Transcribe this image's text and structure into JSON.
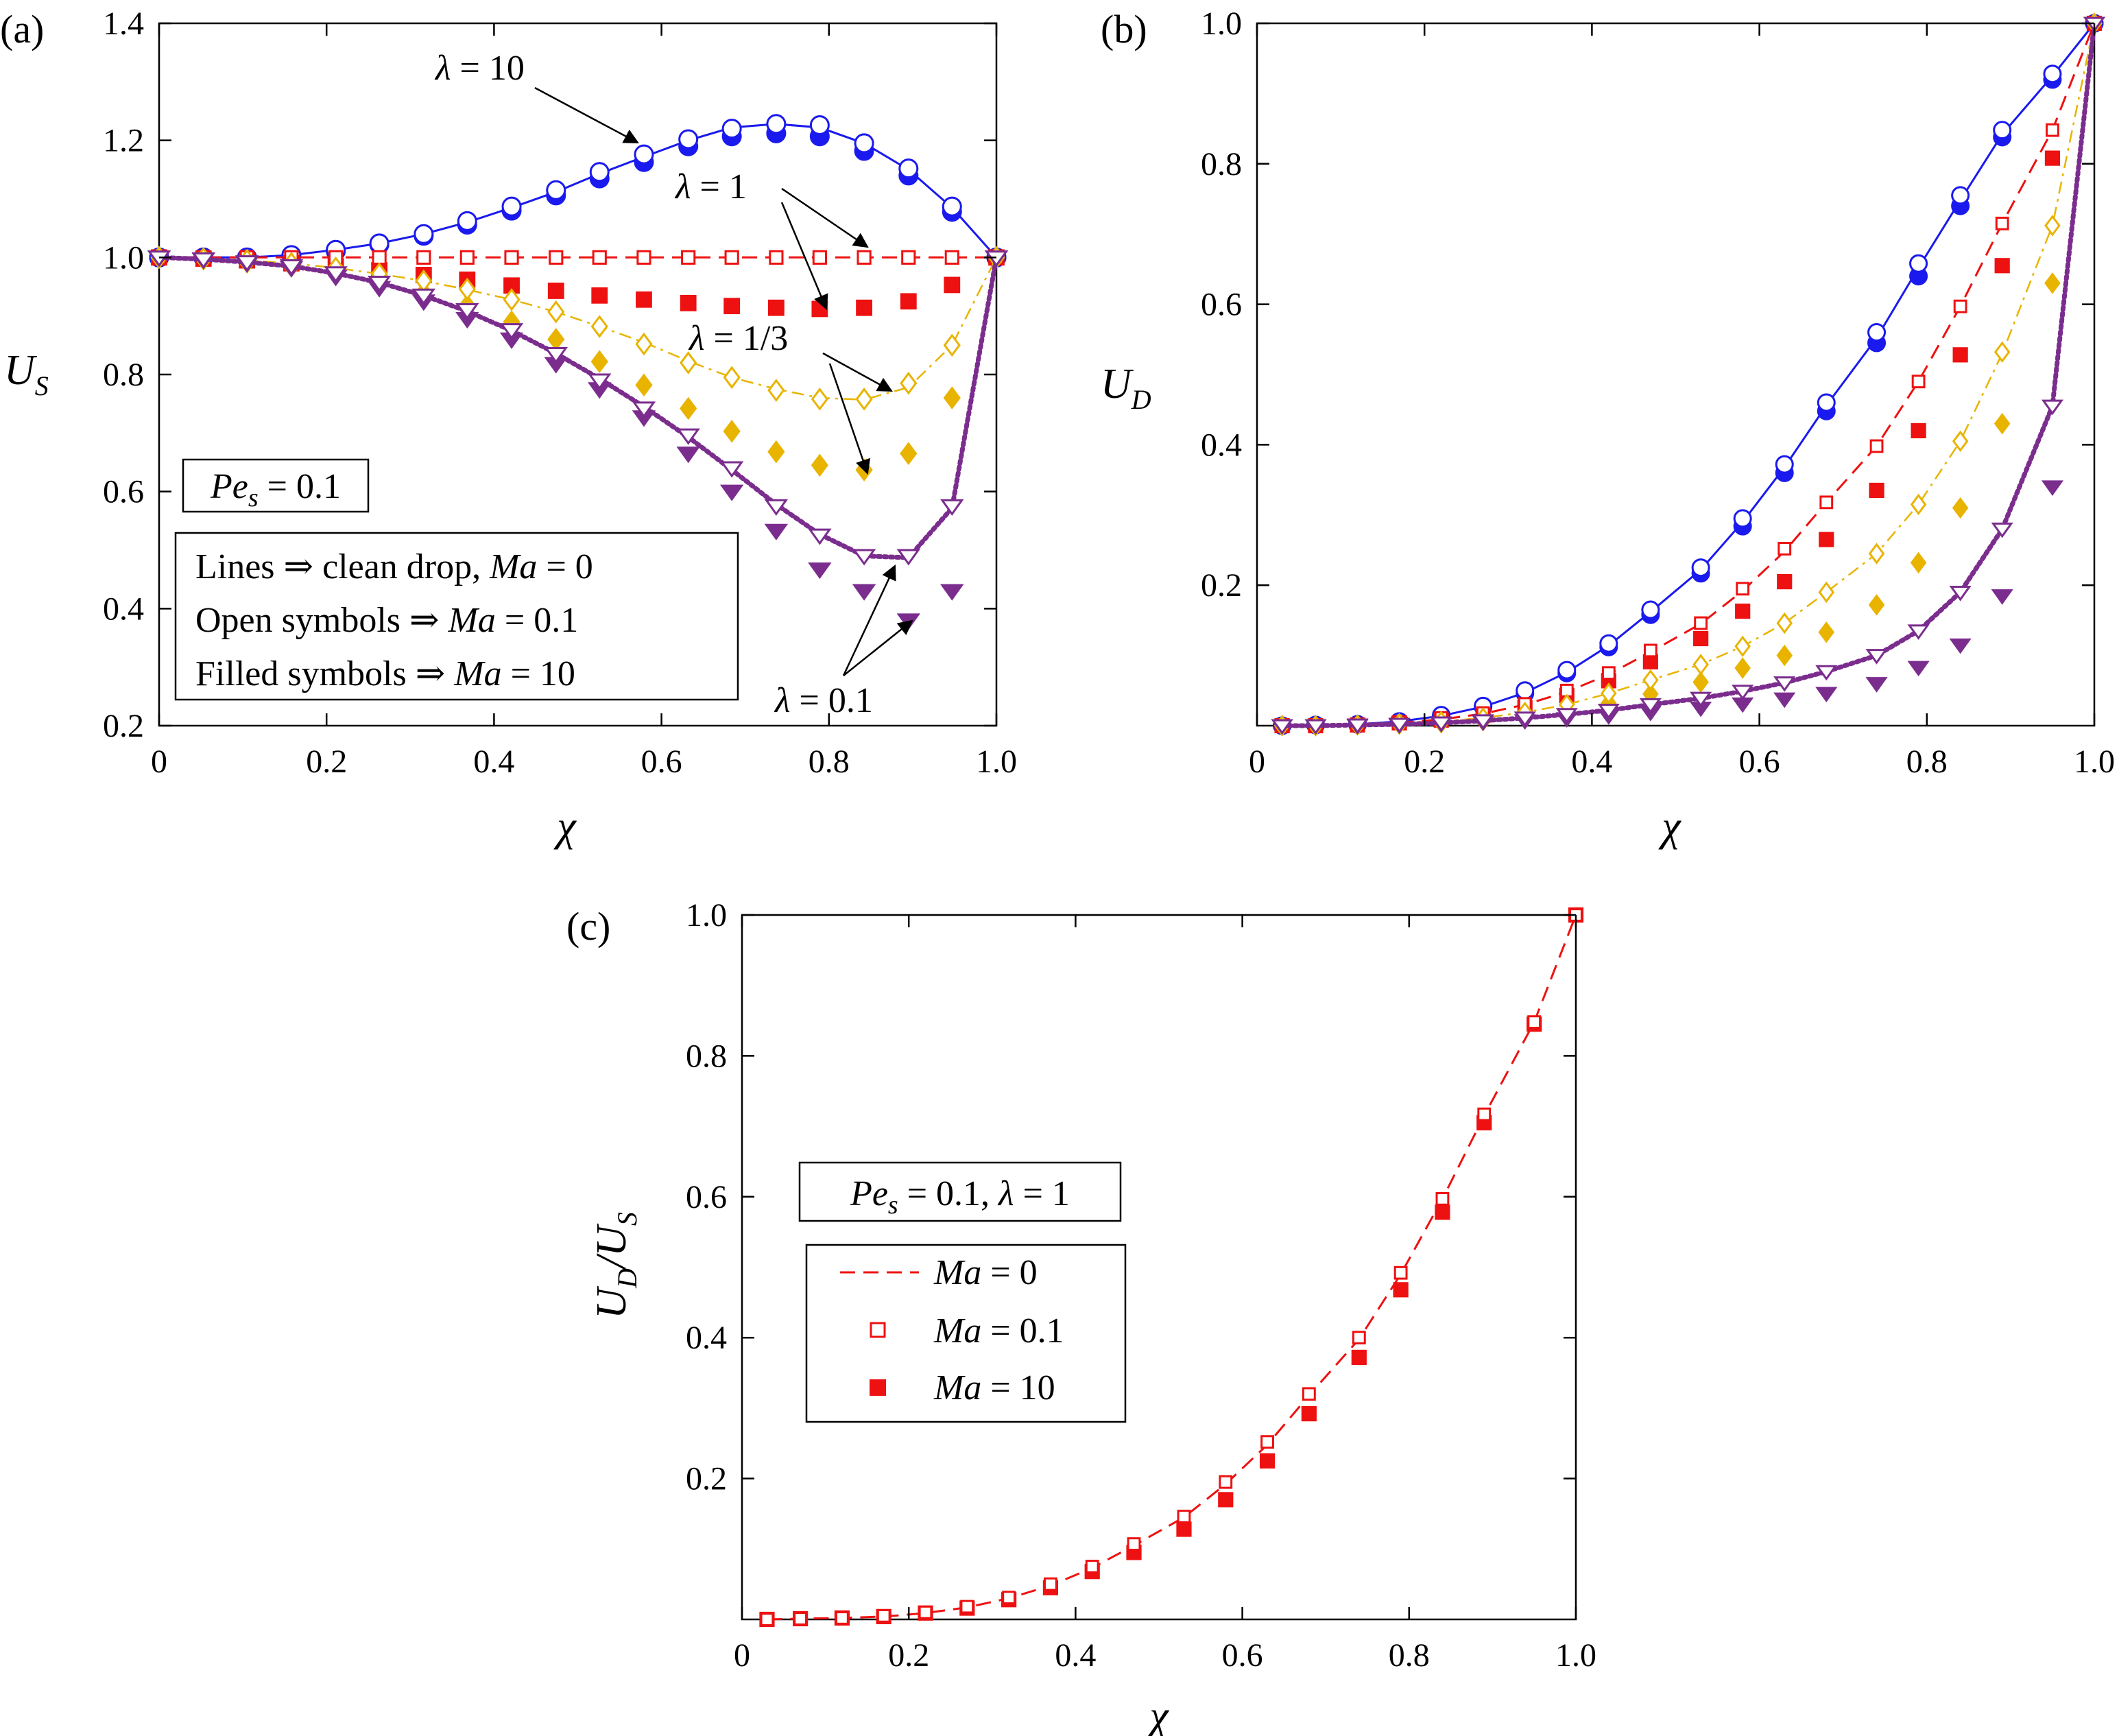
{
  "chart_data": [
    {
      "panel": "(a)",
      "type": "line",
      "xlabel": "χ",
      "ylabel": "U_S",
      "xlim": [
        0,
        1.0
      ],
      "ylim": [
        0.2,
        1.4
      ],
      "xticks": [
        "0",
        "0.2",
        "0.4",
        "0.6",
        "0.8",
        "1.0"
      ],
      "yticks": [
        "0.2",
        "0.4",
        "0.6",
        "0.8",
        "1.0",
        "1.2",
        "1.4"
      ],
      "info_box": "Pe_s = 0.1",
      "legend_notes": [
        "Lines ⇒ clean drop, Ma = 0",
        "Open symbols ⇒ Ma = 0.1",
        "Filled symbols ⇒ Ma = 10"
      ],
      "annotations": [
        "λ = 10",
        "λ = 1",
        "λ = 1/3",
        "λ = 0.1"
      ],
      "series": [
        {
          "name": "λ = 10",
          "color": "#1a1aee",
          "style": "solid",
          "marker": "circle",
          "x": [
            0,
            0.053,
            0.105,
            0.158,
            0.211,
            0.263,
            0.316,
            0.368,
            0.421,
            0.474,
            0.526,
            0.579,
            0.632,
            0.684,
            0.737,
            0.789,
            0.842,
            0.895,
            0.947,
            1.0
          ],
          "clean": [
            1.0,
            1.0,
            1.0,
            1.004,
            1.013,
            1.024,
            1.04,
            1.06,
            1.085,
            1.112,
            1.143,
            1.172,
            1.2,
            1.222,
            1.228,
            1.222,
            1.195,
            1.15,
            1.085,
            1.0
          ],
          "open": [
            1.0,
            1.0,
            1.0,
            1.004,
            1.013,
            1.024,
            1.04,
            1.062,
            1.087,
            1.115,
            1.146,
            1.176,
            1.202,
            1.22,
            1.228,
            1.226,
            1.195,
            1.152,
            1.087,
            1.0
          ],
          "filled": [
            1.0,
            1.0,
            1.0,
            1.003,
            1.011,
            1.022,
            1.037,
            1.056,
            1.08,
            1.106,
            1.135,
            1.163,
            1.19,
            1.207,
            1.212,
            1.207,
            1.182,
            1.14,
            1.078,
            1.0
          ]
        },
        {
          "name": "λ = 1",
          "color": "#ee1111",
          "style": "dashed",
          "marker": "square",
          "x": [
            0,
            0.053,
            0.105,
            0.158,
            0.211,
            0.263,
            0.316,
            0.368,
            0.421,
            0.474,
            0.526,
            0.579,
            0.632,
            0.684,
            0.737,
            0.789,
            0.842,
            0.895,
            0.947,
            1.0
          ],
          "clean": [
            1.0,
            1.0,
            1.0,
            1.0,
            1.0,
            1.0,
            1.0,
            1.0,
            1.0,
            1.0,
            1.0,
            1.0,
            1.0,
            1.0,
            1.0,
            1.0,
            1.0,
            1.0,
            1.0,
            1.0
          ],
          "open": [
            1.0,
            1.0,
            1.0,
            1.0,
            1.0,
            1.0,
            1.0,
            1.0,
            1.0,
            1.0,
            1.0,
            1.0,
            1.0,
            1.0,
            1.0,
            1.0,
            1.0,
            1.0,
            1.0,
            1.0
          ],
          "filled": [
            1.0,
            0.998,
            0.995,
            0.99,
            0.985,
            0.978,
            0.97,
            0.962,
            0.952,
            0.943,
            0.935,
            0.928,
            0.922,
            0.917,
            0.914,
            0.912,
            0.914,
            0.925,
            0.953,
            1.0
          ]
        },
        {
          "name": "λ = 1/3",
          "color": "#e8b400",
          "style": "dashdot",
          "marker": "diamond",
          "x": [
            0,
            0.053,
            0.105,
            0.158,
            0.211,
            0.263,
            0.316,
            0.368,
            0.421,
            0.474,
            0.526,
            0.579,
            0.632,
            0.684,
            0.737,
            0.789,
            0.842,
            0.895,
            0.947,
            1.0
          ],
          "clean": [
            1.0,
            0.998,
            0.995,
            0.99,
            0.982,
            0.972,
            0.96,
            0.945,
            0.928,
            0.907,
            0.882,
            0.855,
            0.823,
            0.795,
            0.775,
            0.76,
            0.757,
            0.778,
            0.85,
            1.0
          ],
          "open": [
            1.0,
            0.998,
            0.995,
            0.99,
            0.982,
            0.972,
            0.96,
            0.946,
            0.928,
            0.907,
            0.882,
            0.852,
            0.82,
            0.795,
            0.773,
            0.758,
            0.758,
            0.785,
            0.85,
            1.0
          ],
          "filled": [
            1.0,
            0.997,
            0.992,
            0.985,
            0.975,
            0.96,
            0.94,
            0.918,
            0.89,
            0.86,
            0.822,
            0.782,
            0.742,
            0.703,
            0.668,
            0.645,
            0.637,
            0.665,
            0.76,
            1.0
          ]
        },
        {
          "name": "λ = 0.1",
          "color": "#7b2d8e",
          "style": "dotted",
          "marker": "triangle-down",
          "x": [
            0,
            0.053,
            0.105,
            0.158,
            0.211,
            0.263,
            0.316,
            0.368,
            0.421,
            0.474,
            0.526,
            0.579,
            0.632,
            0.684,
            0.737,
            0.789,
            0.842,
            0.895,
            0.947,
            1.0
          ],
          "clean": [
            1.0,
            0.997,
            0.992,
            0.985,
            0.973,
            0.957,
            0.935,
            0.908,
            0.875,
            0.836,
            0.793,
            0.745,
            0.693,
            0.637,
            0.578,
            0.527,
            0.49,
            0.487,
            0.572,
            1.0
          ],
          "open": [
            1.0,
            0.997,
            0.992,
            0.985,
            0.973,
            0.957,
            0.935,
            0.91,
            0.876,
            0.835,
            0.79,
            0.742,
            0.696,
            0.64,
            0.575,
            0.525,
            0.49,
            0.49,
            0.575,
            1.0
          ],
          "filled": [
            1.0,
            0.996,
            0.99,
            0.982,
            0.967,
            0.948,
            0.925,
            0.895,
            0.86,
            0.818,
            0.775,
            0.727,
            0.665,
            0.6,
            0.533,
            0.467,
            0.43,
            0.38,
            0.43,
            1.0
          ]
        }
      ]
    },
    {
      "panel": "(b)",
      "type": "line",
      "xlabel": "χ",
      "ylabel": "U_D",
      "xlim": [
        0,
        1.0
      ],
      "ylim": [
        0,
        1.0
      ],
      "xticks": [
        "0",
        "0.2",
        "0.4",
        "0.6",
        "0.8",
        "1.0"
      ],
      "yticks": [
        "0.2",
        "0.4",
        "0.6",
        "0.8",
        "1.0"
      ],
      "series": [
        {
          "name": "λ = 10",
          "color": "#1a1aee",
          "style": "solid",
          "marker": "circle",
          "x": [
            0.03,
            0.07,
            0.12,
            0.17,
            0.22,
            0.27,
            0.32,
            0.37,
            0.42,
            0.47,
            0.53,
            0.58,
            0.63,
            0.68,
            0.74,
            0.79,
            0.84,
            0.89,
            0.95,
            1.0
          ],
          "clean": [
            0.0,
            0.001,
            0.002,
            0.006,
            0.014,
            0.027,
            0.047,
            0.076,
            0.114,
            0.162,
            0.222,
            0.29,
            0.368,
            0.456,
            0.552,
            0.652,
            0.748,
            0.842,
            0.925,
            1.0
          ],
          "open": [
            0.0,
            0.001,
            0.002,
            0.006,
            0.015,
            0.028,
            0.05,
            0.079,
            0.117,
            0.165,
            0.225,
            0.295,
            0.372,
            0.46,
            0.56,
            0.658,
            0.755,
            0.848,
            0.928,
            1.0
          ],
          "filled": [
            0.0,
            0.001,
            0.002,
            0.006,
            0.013,
            0.027,
            0.046,
            0.075,
            0.112,
            0.158,
            0.217,
            0.284,
            0.36,
            0.448,
            0.545,
            0.64,
            0.74,
            0.838,
            0.92,
            1.0
          ]
        },
        {
          "name": "λ = 1",
          "color": "#ee1111",
          "style": "dashed",
          "marker": "square",
          "x": [
            0.03,
            0.07,
            0.12,
            0.17,
            0.22,
            0.27,
            0.32,
            0.37,
            0.42,
            0.47,
            0.53,
            0.58,
            0.63,
            0.68,
            0.74,
            0.79,
            0.84,
            0.89,
            0.95,
            1.0
          ],
          "clean": [
            0.0,
            0.001,
            0.002,
            0.004,
            0.009,
            0.017,
            0.03,
            0.048,
            0.073,
            0.105,
            0.145,
            0.192,
            0.248,
            0.318,
            0.398,
            0.49,
            0.597,
            0.715,
            0.848,
            1.0
          ],
          "open": [
            0.0,
            0.001,
            0.002,
            0.005,
            0.011,
            0.018,
            0.031,
            0.05,
            0.075,
            0.107,
            0.146,
            0.195,
            0.252,
            0.318,
            0.398,
            0.49,
            0.597,
            0.715,
            0.848,
            1.0
          ],
          "filled": [
            0.0,
            0.0,
            0.001,
            0.004,
            0.008,
            0.015,
            0.026,
            0.043,
            0.064,
            0.091,
            0.124,
            0.163,
            0.205,
            0.265,
            0.335,
            0.42,
            0.528,
            0.655,
            0.808,
            1.0
          ]
        },
        {
          "name": "λ = 1/3",
          "color": "#e8b400",
          "style": "dashdot",
          "marker": "diamond",
          "x": [
            0.03,
            0.07,
            0.12,
            0.17,
            0.22,
            0.27,
            0.32,
            0.37,
            0.42,
            0.47,
            0.53,
            0.58,
            0.63,
            0.68,
            0.74,
            0.79,
            0.84,
            0.89,
            0.95,
            1.0
          ],
          "clean": [
            0.0,
            0.0,
            0.001,
            0.003,
            0.006,
            0.011,
            0.019,
            0.03,
            0.046,
            0.065,
            0.087,
            0.113,
            0.146,
            0.19,
            0.245,
            0.315,
            0.405,
            0.53,
            0.712,
            1.0
          ],
          "open": [
            0.0,
            0.0,
            0.001,
            0.003,
            0.006,
            0.011,
            0.019,
            0.03,
            0.046,
            0.065,
            0.087,
            0.113,
            0.146,
            0.19,
            0.245,
            0.315,
            0.405,
            0.532,
            0.712,
            1.0
          ],
          "filled": [
            0.0,
            0.0,
            0.001,
            0.002,
            0.004,
            0.007,
            0.012,
            0.02,
            0.032,
            0.045,
            0.062,
            0.082,
            0.1,
            0.133,
            0.172,
            0.232,
            0.31,
            0.43,
            0.63,
            1.0
          ]
        },
        {
          "name": "λ = 0.1",
          "color": "#7b2d8e",
          "style": "dotted",
          "marker": "triangle-down",
          "x": [
            0.03,
            0.07,
            0.12,
            0.17,
            0.22,
            0.27,
            0.32,
            0.37,
            0.42,
            0.47,
            0.53,
            0.58,
            0.63,
            0.68,
            0.74,
            0.79,
            0.84,
            0.89,
            0.95,
            1.0
          ],
          "clean": [
            0.0,
            0.0,
            0.001,
            0.002,
            0.004,
            0.007,
            0.011,
            0.016,
            0.022,
            0.03,
            0.039,
            0.049,
            0.061,
            0.077,
            0.1,
            0.135,
            0.19,
            0.28,
            0.455,
            1.0
          ],
          "open": [
            0.0,
            0.0,
            0.001,
            0.002,
            0.004,
            0.007,
            0.011,
            0.016,
            0.022,
            0.03,
            0.039,
            0.049,
            0.061,
            0.077,
            0.1,
            0.135,
            0.19,
            0.28,
            0.455,
            1.0
          ],
          "filled": [
            0.0,
            0.0,
            0.0,
            0.001,
            0.003,
            0.005,
            0.007,
            0.01,
            0.014,
            0.019,
            0.025,
            0.031,
            0.038,
            0.046,
            0.06,
            0.083,
            0.115,
            0.185,
            0.34,
            1.0
          ]
        }
      ]
    },
    {
      "panel": "(c)",
      "type": "line",
      "xlabel": "χ",
      "ylabel": "U_D/U_S",
      "xlim": [
        0,
        1.0
      ],
      "ylim": [
        0,
        1.0
      ],
      "xticks": [
        "0",
        "0.2",
        "0.4",
        "0.6",
        "0.8",
        "1.0"
      ],
      "yticks": [
        "0.2",
        "0.4",
        "0.6",
        "0.8",
        "1.0"
      ],
      "info_box": "Pe_s = 0.1, λ = 1",
      "legend": [
        "Ma = 0",
        "Ma = 0.1",
        "Ma = 10"
      ],
      "series": [
        {
          "name": "λ = 1",
          "color": "#ee1111",
          "style": "dashed",
          "marker": "square",
          "x": [
            0.03,
            0.07,
            0.12,
            0.17,
            0.22,
            0.27,
            0.32,
            0.37,
            0.42,
            0.47,
            0.53,
            0.58,
            0.63,
            0.68,
            0.74,
            0.79,
            0.84,
            0.89,
            0.95,
            1.0
          ],
          "clean": [
            0.0,
            0.001,
            0.002,
            0.004,
            0.009,
            0.017,
            0.03,
            0.048,
            0.073,
            0.105,
            0.145,
            0.192,
            0.248,
            0.318,
            0.398,
            0.49,
            0.597,
            0.715,
            0.848,
            1.0
          ],
          "open": [
            0.0,
            0.001,
            0.002,
            0.005,
            0.01,
            0.018,
            0.031,
            0.05,
            0.075,
            0.107,
            0.146,
            0.195,
            0.252,
            0.32,
            0.4,
            0.492,
            0.597,
            0.717,
            0.848,
            1.0
          ],
          "filled": [
            0.0,
            0.001,
            0.002,
            0.004,
            0.009,
            0.016,
            0.028,
            0.045,
            0.068,
            0.095,
            0.128,
            0.17,
            0.225,
            0.292,
            0.372,
            0.468,
            0.578,
            0.705,
            0.845,
            1.0
          ]
        }
      ]
    }
  ]
}
